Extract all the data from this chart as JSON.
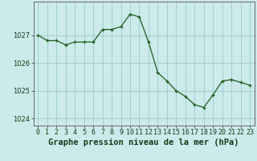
{
  "x": [
    0,
    1,
    2,
    3,
    4,
    5,
    6,
    7,
    8,
    9,
    10,
    11,
    12,
    13,
    14,
    15,
    16,
    17,
    18,
    19,
    20,
    21,
    22,
    23
  ],
  "y": [
    1027.0,
    1026.8,
    1026.8,
    1026.65,
    1026.75,
    1026.75,
    1026.75,
    1027.2,
    1027.2,
    1027.3,
    1027.75,
    1027.65,
    1026.75,
    1025.65,
    1025.35,
    1025.0,
    1024.8,
    1024.5,
    1024.4,
    1024.85,
    1025.35,
    1025.4,
    1025.3,
    1025.2
  ],
  "line_color": "#1e5c1e",
  "marker_color": "#1e5c1e",
  "bg_color": "#cceaea",
  "grid_color": "#99cccc",
  "axis_color": "#666666",
  "title": "Graphe pression niveau de la mer (hPa)",
  "ylim": [
    1023.75,
    1028.2
  ],
  "yticks": [
    1024,
    1025,
    1026,
    1027
  ],
  "tick_fontsize": 6.0,
  "title_fontsize": 7.5
}
